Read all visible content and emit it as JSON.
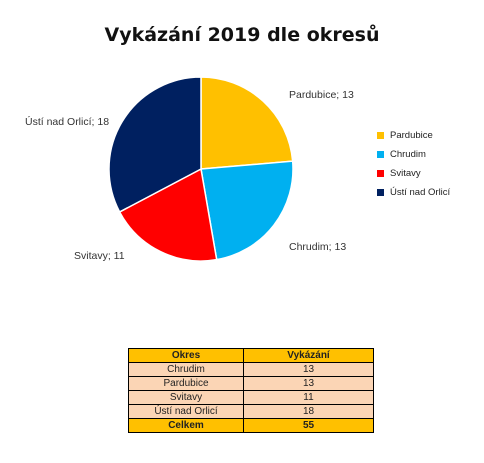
{
  "chart_data": {
    "type": "pie",
    "title": "Vykázání 2019 dle okresů",
    "categories": [
      "Pardubice",
      "Chrudim",
      "Svitavy",
      "Ústí nad Orlicí"
    ],
    "values": [
      13,
      13,
      11,
      18
    ],
    "slice_labels": [
      "Pardubice; 13",
      "Chrudim; 13",
      "Svitavy; 11",
      "Ústí nad Orlicí; 18"
    ],
    "colors": [
      "#ffc000",
      "#00b0f0",
      "#ff0000",
      "#002060"
    ],
    "legend": {
      "position": "right",
      "entries": [
        "Pardubice",
        "Chrudim",
        "Svitavy",
        "Ústí nad Orlicí"
      ]
    }
  },
  "table": {
    "headers": [
      "Okres",
      "Vykázání"
    ],
    "rows": [
      [
        "Chrudim",
        "13"
      ],
      [
        "Pardubice",
        "13"
      ],
      [
        "Svitavy",
        "11"
      ],
      [
        "Ústí nad Orlicí",
        "18"
      ]
    ],
    "total": [
      "Celkem",
      "55"
    ]
  }
}
